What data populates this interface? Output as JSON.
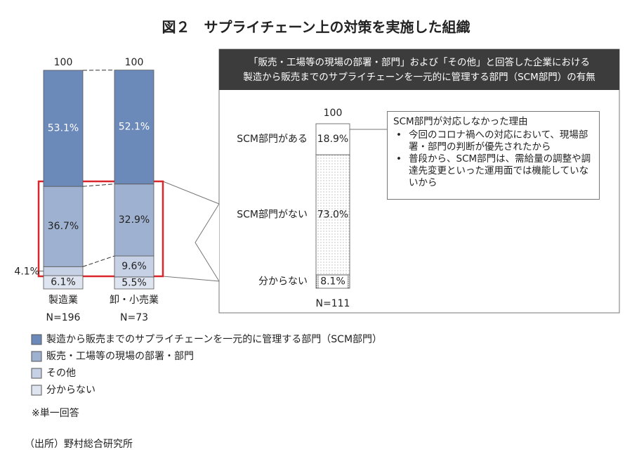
{
  "title": "図２　サプライチェーン上の対策を実施した組織",
  "chart_data": [
    {
      "type": "stacked_bar",
      "categories": [
        "製造業",
        "卸・小売業"
      ],
      "sample_sizes": [
        "N=196",
        "N=73"
      ],
      "totals": [
        100,
        100
      ],
      "ylim": [
        0,
        100
      ],
      "series": [
        {
          "name": "製造から販売までのサプライチェーンを一元的に管理する部門（SCM部門）",
          "color": "#6b89b9",
          "values": [
            53.1,
            52.1
          ],
          "value_labels": [
            "53.1%",
            "52.1%"
          ]
        },
        {
          "name": "販売・工場等の現場の部署・部門",
          "color": "#9fb1d1",
          "values": [
            36.7,
            32.9
          ],
          "value_labels": [
            "36.7%",
            "32.9%"
          ]
        },
        {
          "name": "その他",
          "color": "#c6d1e5",
          "values": [
            4.1,
            9.6
          ],
          "value_labels": [
            "4.1%",
            "9.6%"
          ]
        },
        {
          "name": "分からない",
          "color": "#dfe5f0",
          "values": [
            6.1,
            5.5
          ],
          "value_labels": [
            "6.1%",
            "5.5%"
          ]
        }
      ]
    },
    {
      "type": "stacked_single",
      "title": [
        "「販売・工場等の現場の部署・部門」および「その他」と回答した企業における",
        "製造から販売までのサプライチェーンを一元的に管理する部門（SCM部門）の有無"
      ],
      "categories": [
        "SCM部門がある",
        "SCM部門がない",
        "分からない"
      ],
      "values": [
        18.9,
        73.0,
        8.1
      ],
      "value_labels": [
        "18.9%",
        "73.0%",
        "8.1%"
      ],
      "fills": [
        "#ffffff",
        "url(#dots)",
        "url(#dense)"
      ],
      "total": 100,
      "sample_size": "N=111",
      "ylim": [
        0,
        100
      ]
    }
  ],
  "note_box": {
    "title": "SCM部門が対応しなかった理由",
    "items": [
      "今回のコロナ禍への対応において、現場部署・部門の判断が優先されたから",
      "普段から、SCM部門は、需給量の調整や調達先変更といった運用面では機能していないから"
    ]
  },
  "footnote": "※単一回答",
  "source": "（出所）野村総合研究所"
}
